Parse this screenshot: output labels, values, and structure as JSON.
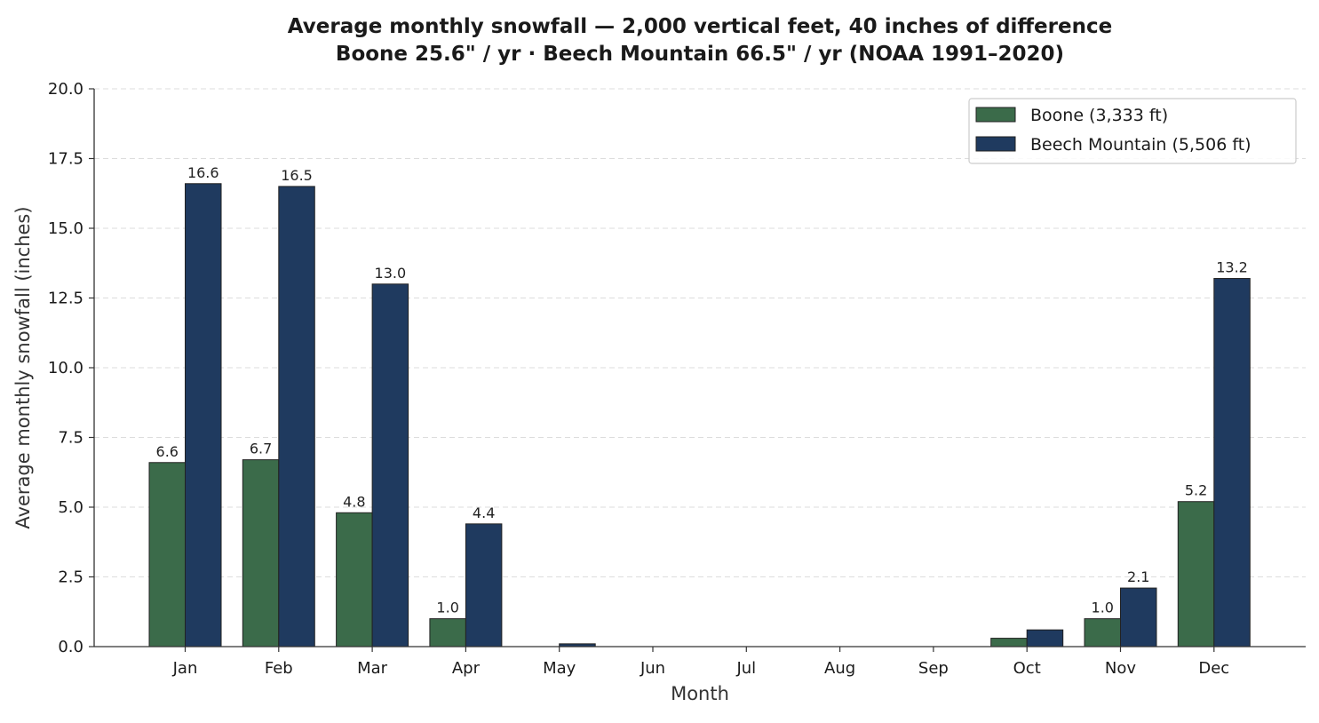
{
  "chart_data": {
    "type": "bar",
    "title": "Average monthly snowfall — 2,000 vertical feet, 40 inches of difference",
    "subtitle": "Boone 25.6\" / yr · Beech Mountain 66.5\" / yr  (NOAA 1991–2020)",
    "xlabel": "Month",
    "ylabel": "Average monthly snowfall (inches)",
    "categories": [
      "Jan",
      "Feb",
      "Mar",
      "Apr",
      "May",
      "Jun",
      "Jul",
      "Aug",
      "Sep",
      "Oct",
      "Nov",
      "Dec"
    ],
    "ylim": [
      0,
      20
    ],
    "yticks": [
      "0.0",
      "2.5",
      "5.0",
      "7.5",
      "10.0",
      "12.5",
      "15.0",
      "17.5",
      "20.0"
    ],
    "grid": "horizontal, dashed",
    "legend_position": "top-right",
    "series": [
      {
        "name": "Boone (3,333 ft)",
        "color": "#3b6b4a",
        "values": [
          6.6,
          6.7,
          4.8,
          1.0,
          0.0,
          0.0,
          0.0,
          0.0,
          0.0,
          0.3,
          1.0,
          5.2
        ],
        "labels": [
          "6.6",
          "6.7",
          "4.8",
          "1.0",
          "",
          "",
          "",
          "",
          "",
          "",
          "1.0",
          "5.2"
        ]
      },
      {
        "name": "Beech Mountain (5,506 ft)",
        "color": "#1f3a5f",
        "values": [
          16.6,
          16.5,
          13.0,
          4.4,
          0.1,
          0.0,
          0.0,
          0.0,
          0.0,
          0.6,
          2.1,
          13.2
        ],
        "labels": [
          "16.6",
          "16.5",
          "13.0",
          "4.4",
          "",
          "",
          "",
          "",
          "",
          "",
          "2.1",
          "13.2"
        ]
      }
    ]
  }
}
